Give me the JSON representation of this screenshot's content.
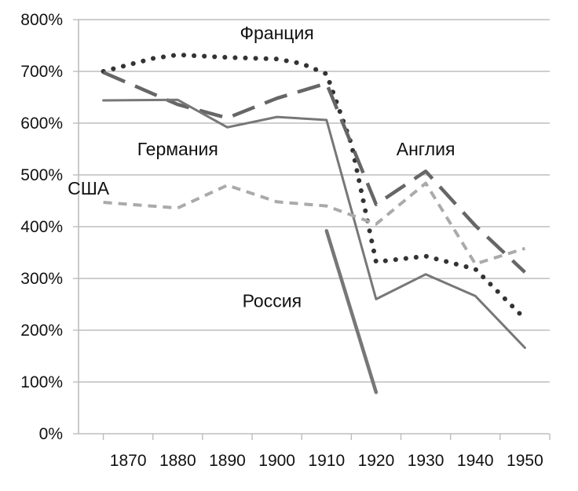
{
  "chart_data": {
    "type": "line",
    "x": [
      1870,
      1880,
      1890,
      1900,
      1910,
      1920,
      1930,
      1940,
      1950
    ],
    "xticks": [
      "1870",
      "1880",
      "1890",
      "1900",
      "1910",
      "1920",
      "1930",
      "1940",
      "1950"
    ],
    "yticks": [
      "0%",
      "100%",
      "200%",
      "300%",
      "400%",
      "500%",
      "600%",
      "700%",
      "800%"
    ],
    "ylim": [
      0,
      800
    ],
    "grid": "horizontal",
    "legend": "none",
    "series": [
      {
        "name": "Франция",
        "style": "dotted",
        "color": "#333333",
        "points": [
          [
            1865,
            700
          ],
          [
            1875,
            725
          ],
          [
            1880,
            732
          ],
          [
            1890,
            727
          ],
          [
            1900,
            724
          ],
          [
            1905,
            715
          ],
          [
            1910,
            695
          ],
          [
            1915,
            560
          ],
          [
            1920,
            332
          ],
          [
            1930,
            343
          ],
          [
            1940,
            318
          ],
          [
            1950,
            222
          ]
        ]
      },
      {
        "name": "Англия",
        "style": "long-dash",
        "color": "#666666",
        "points": [
          [
            1865,
            698
          ],
          [
            1880,
            636
          ],
          [
            1890,
            610
          ],
          [
            1900,
            648
          ],
          [
            1910,
            677
          ],
          [
            1920,
            443
          ],
          [
            1930,
            507
          ],
          [
            1940,
            402
          ],
          [
            1950,
            312
          ]
        ]
      },
      {
        "name": "Германия",
        "style": "solid",
        "color": "#777777",
        "points": [
          [
            1865,
            644
          ],
          [
            1880,
            645
          ],
          [
            1890,
            592
          ],
          [
            1900,
            612
          ],
          [
            1910,
            606
          ],
          [
            1920,
            260
          ],
          [
            1930,
            308
          ],
          [
            1940,
            266
          ],
          [
            1950,
            166
          ]
        ]
      },
      {
        "name": "США",
        "style": "short-dash",
        "color": "#aaaaaa",
        "points": [
          [
            1865,
            447
          ],
          [
            1880,
            436
          ],
          [
            1890,
            480
          ],
          [
            1900,
            448
          ],
          [
            1910,
            440
          ],
          [
            1920,
            405
          ],
          [
            1930,
            484
          ],
          [
            1940,
            328
          ],
          [
            1950,
            358
          ]
        ]
      },
      {
        "name": "Россия",
        "style": "solid-thick",
        "color": "#777777",
        "points": [
          [
            1910,
            392
          ],
          [
            1920,
            80
          ]
        ]
      }
    ],
    "annotations": [
      {
        "text": "Франция",
        "at": [
          1900,
          762
        ]
      },
      {
        "text": "Германия",
        "at": [
          1880,
          538
        ]
      },
      {
        "text": "Англия",
        "at": [
          1930,
          538
        ]
      },
      {
        "text": "США",
        "at": [
          1862,
          462
        ]
      },
      {
        "text": "Россия",
        "at": [
          1899,
          245
        ]
      }
    ]
  }
}
